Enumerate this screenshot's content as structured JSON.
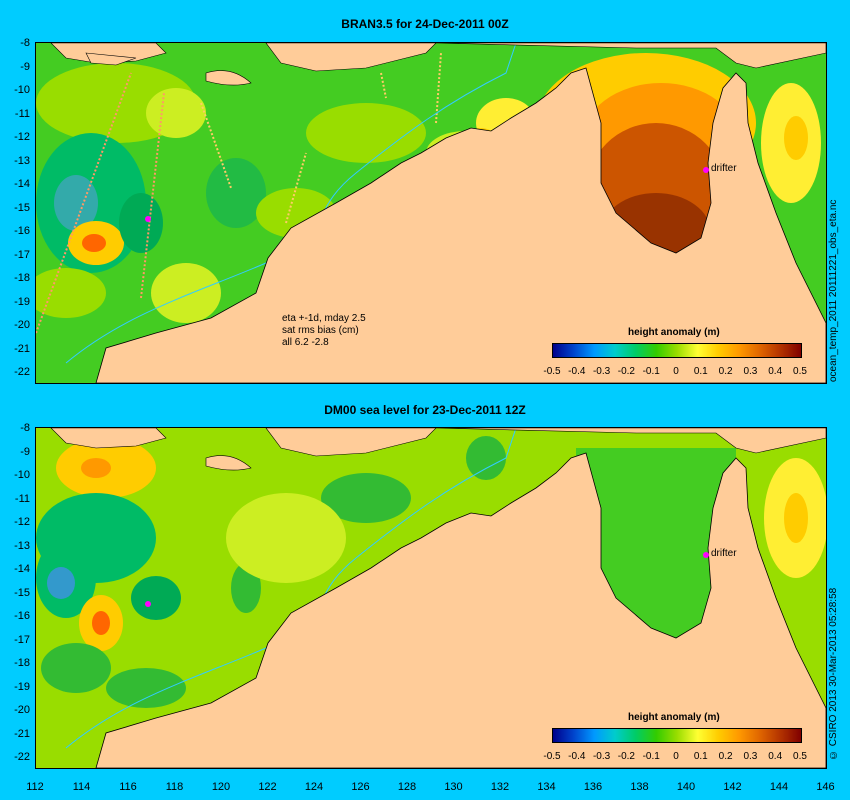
{
  "top_panel": {
    "title": "BRAN3.5 for 24-Dec-2011 00Z",
    "colorbar_title": "height anomaly (m)",
    "stats": {
      "line1": "eta +-1d, mday 2.5",
      "line2": "sat rms bias (cm)",
      "line3": "all 6.2 -2.8"
    },
    "drifter_label": "drifter",
    "side_label": "ocean_temp_2011 20111221_obs_eta.nc"
  },
  "bottom_panel": {
    "title": "DM00 sea level  for 23-Dec-2011 12Z",
    "colorbar_title": "height anomaly (m)",
    "drifter_label": "drifter",
    "side_label": "© CSIRO 2013  30-Mar-2013 05:28:58"
  },
  "y_ticks": [
    "-8",
    "-9",
    "-10",
    "-11",
    "-12",
    "-13",
    "-14",
    "-15",
    "-16",
    "-17",
    "-18",
    "-19",
    "-20",
    "-21",
    "-22"
  ],
  "x_ticks": [
    "112",
    "114",
    "116",
    "118",
    "120",
    "122",
    "124",
    "126",
    "128",
    "130",
    "132",
    "134",
    "136",
    "138",
    "140",
    "142",
    "144",
    "146"
  ],
  "colorbar_ticks": [
    "-0.5",
    "-0.4",
    "-0.3",
    "-0.2",
    "-0.1",
    "0",
    "0.1",
    "0.2",
    "0.3",
    "0.4",
    "0.5"
  ],
  "colors": {
    "background": "#00ccff",
    "land": "#ffcc99",
    "shelf_contour": "#33ccff",
    "drifter_marker": "#ff00ff"
  }
}
